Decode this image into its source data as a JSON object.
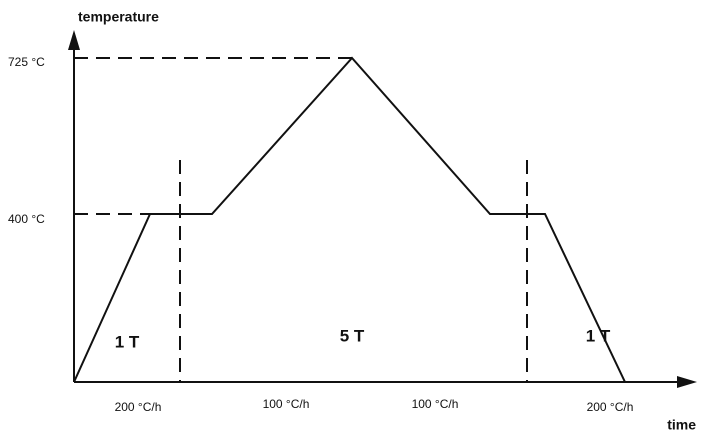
{
  "axes": {
    "y_label": "temperature",
    "x_label": "time"
  },
  "levels": [
    "725 °C",
    "400 °C"
  ],
  "phases": [
    "1 T",
    "5 T",
    "1 T"
  ],
  "rates": [
    "200 °C/h",
    "100 °C/h",
    "100 °C/h",
    "200 °C/h"
  ]
}
